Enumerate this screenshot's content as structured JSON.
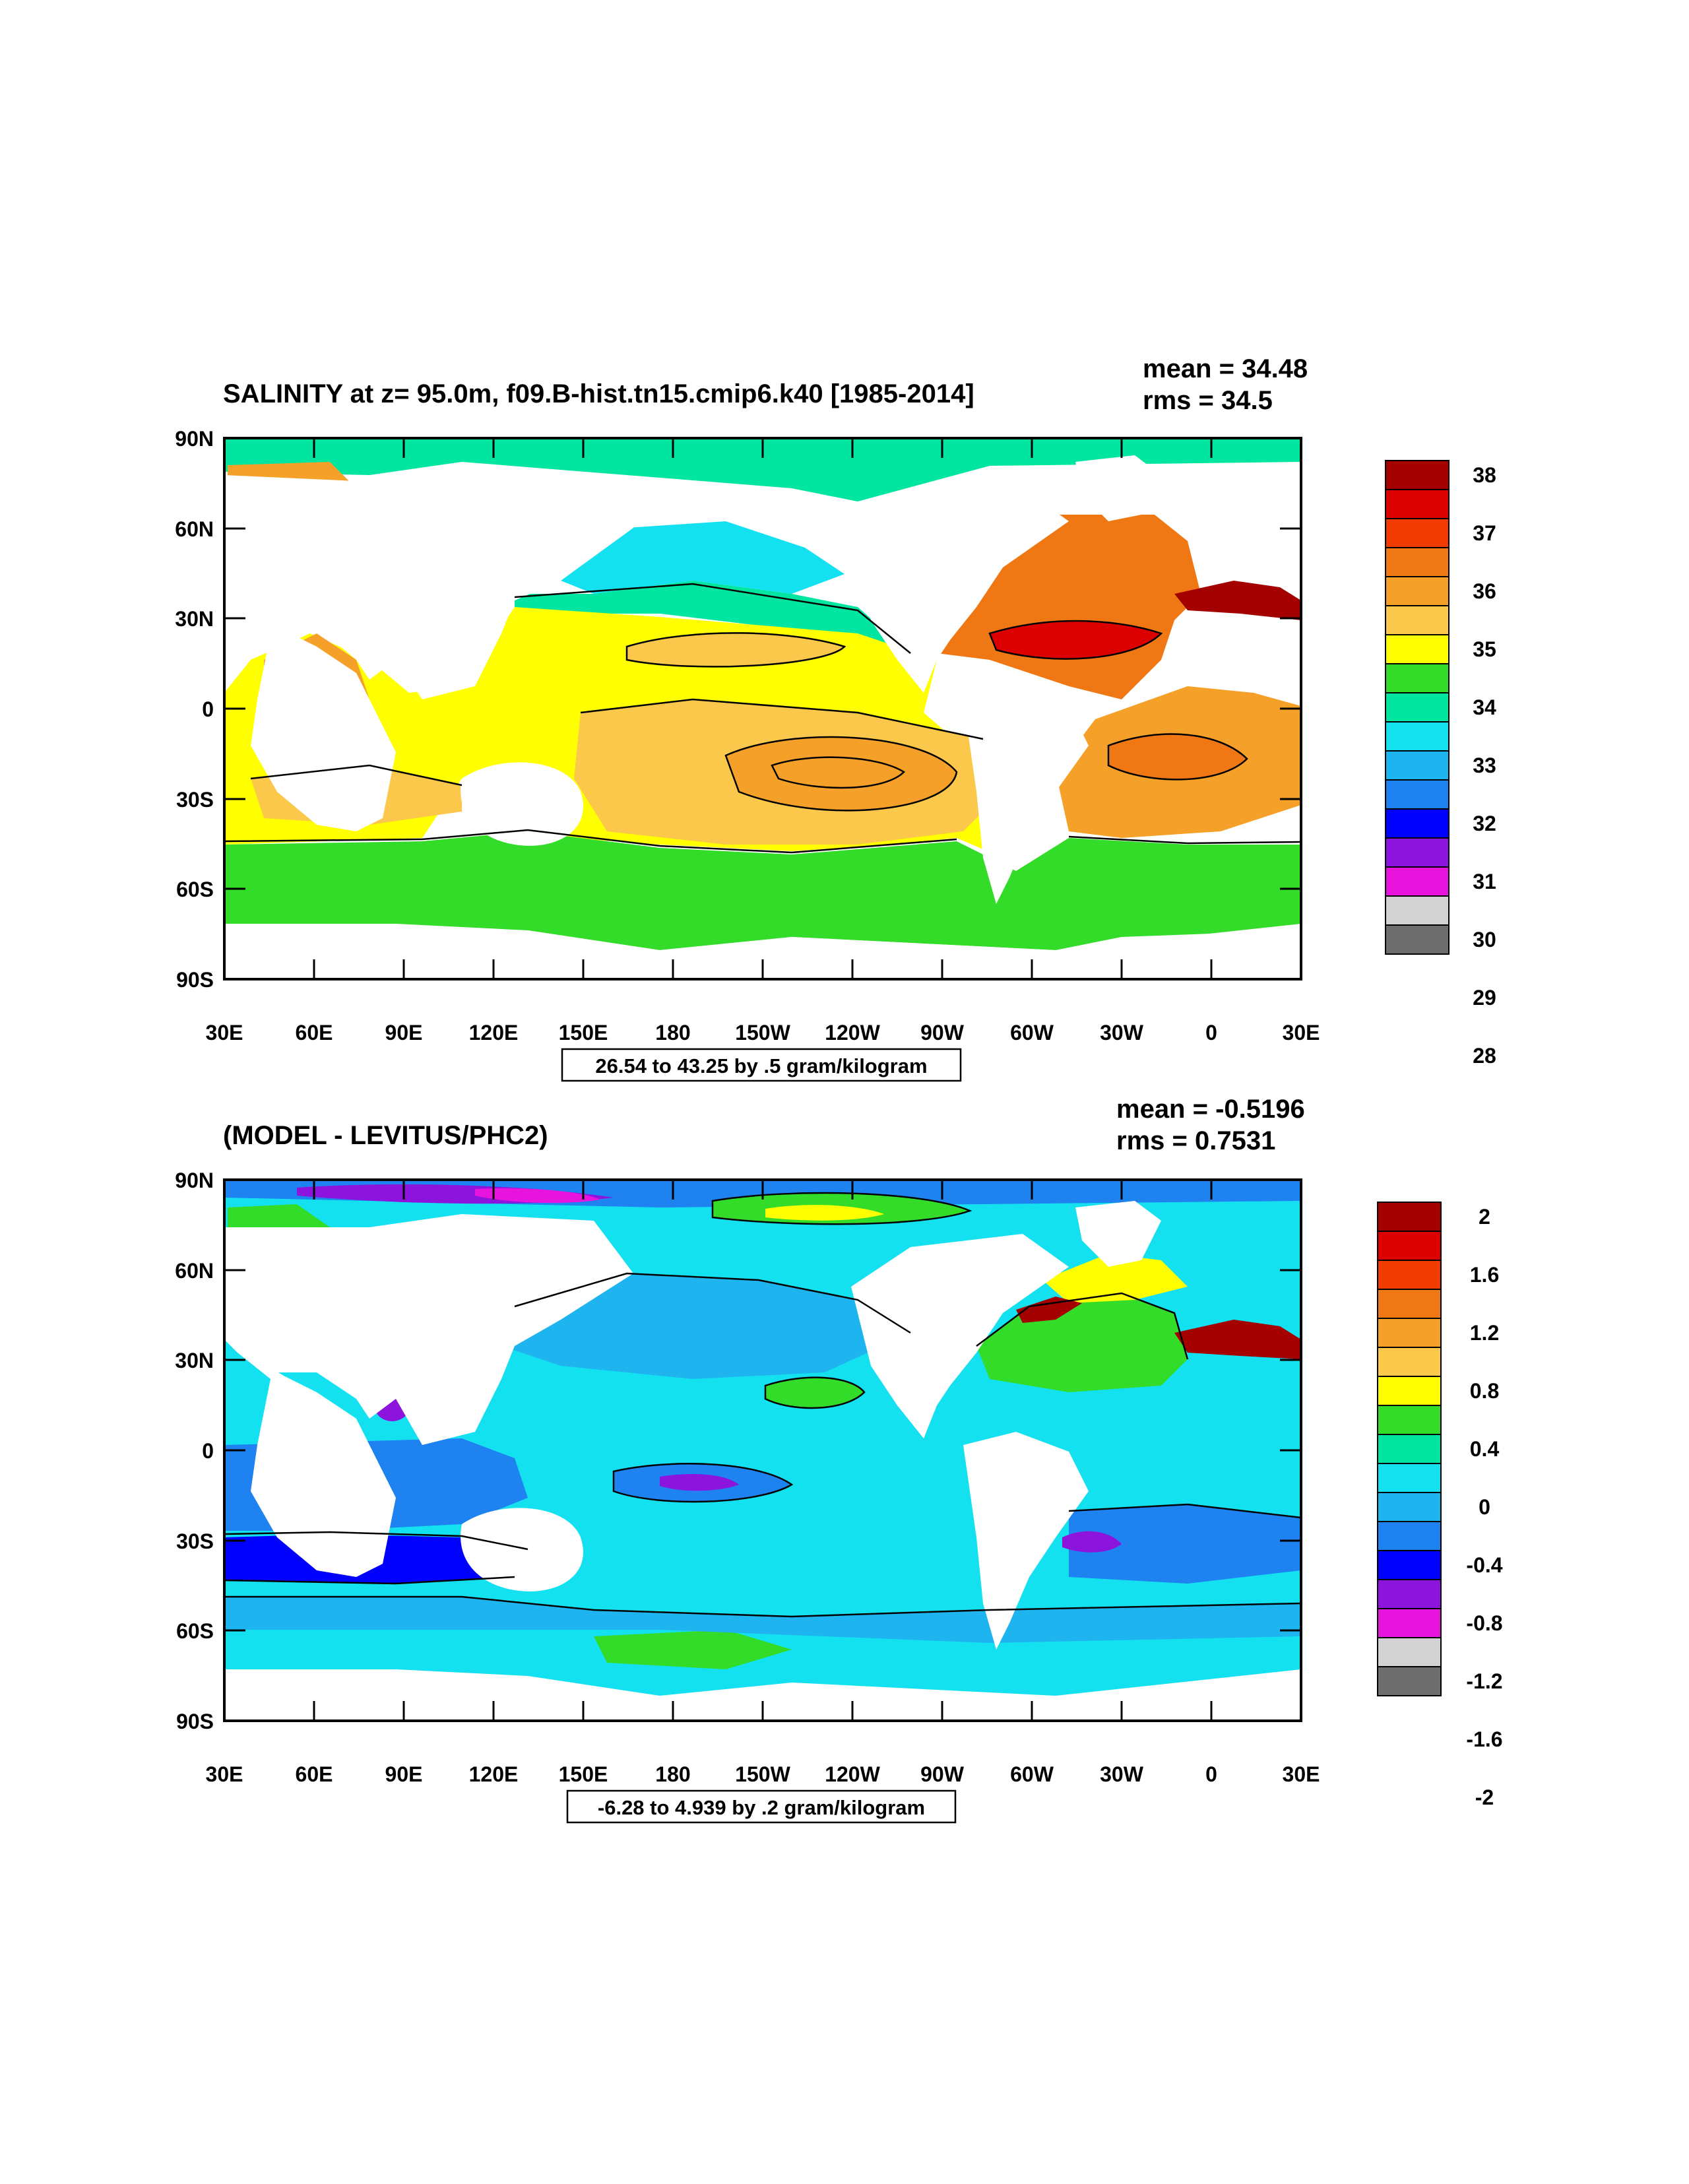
{
  "panels": [
    {
      "title": "SALINITY at z=  95.0m, f09.B-hist.tn15.cmip6.k40 [1985-2014]",
      "stats": {
        "mean": "mean = 34.48",
        "rms": "rms = 34.5"
      },
      "range_note": "26.54 to 43.25 by .5 gram/kilogram",
      "lat_labels": [
        "90N",
        "60N",
        "30N",
        "0",
        "30S",
        "60S",
        "90S"
      ],
      "lon_labels": [
        "30E",
        "60E",
        "90E",
        "120E",
        "150E",
        "180",
        "150W",
        "120W",
        "90W",
        "60W",
        "30W",
        "0",
        "30E"
      ],
      "colorbar": {
        "labels": [
          "38",
          "37",
          "36",
          "35",
          "34",
          "33",
          "32",
          "31",
          "30",
          "29",
          "28"
        ],
        "colors": [
          "#a50000",
          "#dc0000",
          "#f03c00",
          "#f07814",
          "#f5a028",
          "#fbc84b",
          "#ffff00",
          "#32dc28",
          "#00e6a0",
          "#14e1f0",
          "#1eb4f0",
          "#1e82f0",
          "#0000ff",
          "#8c14dc",
          "#e614dc",
          "#d2d2d2",
          "#6e6e6e"
        ]
      },
      "field_colors": {
        "arctic": "#00e6a0",
        "arctic_warm": "#f5a028",
        "north_pacific_high": "#14e1f0",
        "north_pacific_mid": "#00e6a0",
        "tropics": "#ffff00",
        "pacific_warm": "#fbc84b",
        "pacific_core": "#f5a028",
        "atlantic_warm": "#f07814",
        "atlantic_core": "#dc0000",
        "southern": "#32dc28",
        "indian_warm": "#f5a028",
        "mediterranean": "#a50000"
      }
    },
    {
      "title": "(MODEL - LEVITUS/PHC2)",
      "stats": {
        "mean": "mean = -0.5196",
        "rms": "rms = 0.7531"
      },
      "range_note": "-6.28 to 4.939 by .2 gram/kilogram",
      "lat_labels": [
        "90N",
        "60N",
        "30N",
        "0",
        "30S",
        "60S",
        "90S"
      ],
      "lon_labels": [
        "30E",
        "60E",
        "90E",
        "120E",
        "150E",
        "180",
        "150W",
        "120W",
        "90W",
        "60W",
        "30W",
        "0",
        "30E"
      ],
      "colorbar": {
        "labels": [
          "2",
          "1.6",
          "1.2",
          "0.8",
          "0.4",
          "0",
          "-0.4",
          "-0.8",
          "-1.2",
          "-1.6",
          "-2"
        ],
        "colors": [
          "#a50000",
          "#dc0000",
          "#f03c00",
          "#f07814",
          "#f5a028",
          "#fbc84b",
          "#ffff00",
          "#32dc28",
          "#00e6a0",
          "#14e1f0",
          "#1eb4f0",
          "#1e82f0",
          "#0000ff",
          "#8c14dc",
          "#e614dc",
          "#d2d2d2",
          "#6e6e6e"
        ]
      },
      "field_colors": {
        "base": "#14e1f0",
        "mid": "#1eb4f0",
        "deep": "#1e82f0",
        "strong": "#0000ff",
        "purple": "#8c14dc",
        "magenta": "#e614dc",
        "positive": "#32dc28",
        "yellow": "#ffff00",
        "red": "#a50000"
      }
    }
  ]
}
